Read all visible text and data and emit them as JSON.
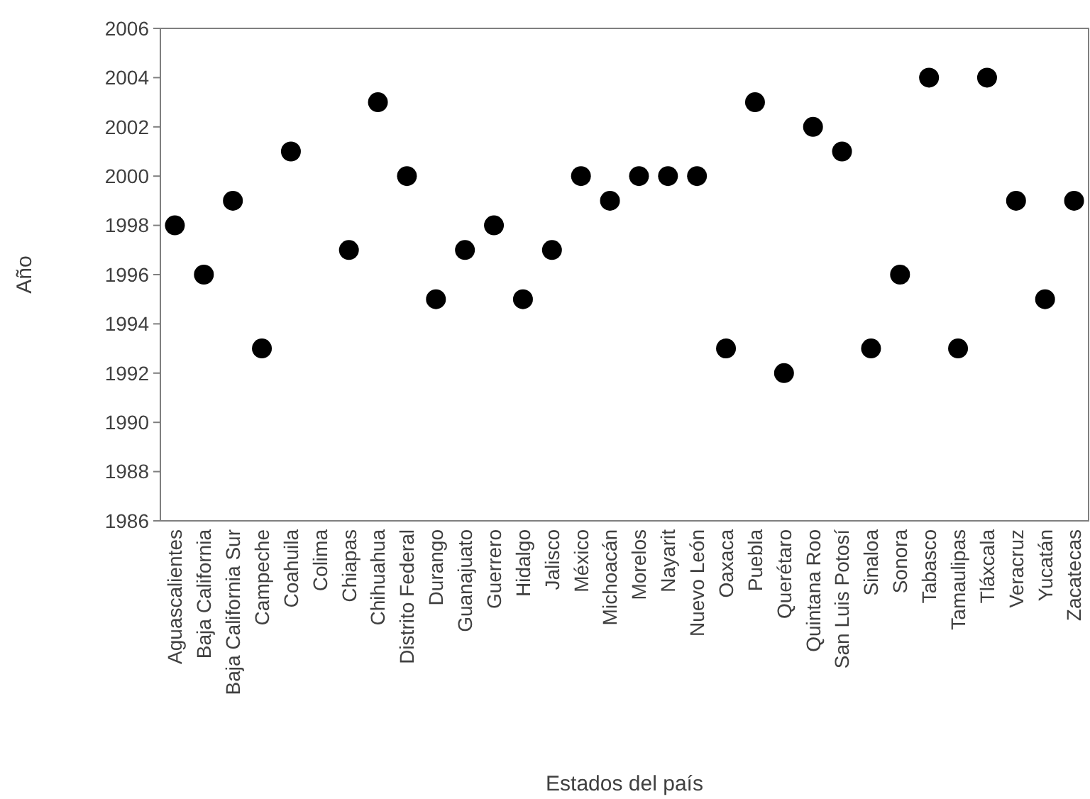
{
  "chart_data": {
    "type": "scatter",
    "xlabel": "Estados del país",
    "ylabel": "Año",
    "categories": [
      "Aguascalientes",
      "Baja California",
      "Baja California Sur",
      "Campeche",
      "Coahuila",
      "Colima",
      "Chiapas",
      "Chihuahua",
      "Distrito Federal",
      "Durango",
      "Guanajuato",
      "Guerrero",
      "Hidalgo",
      "Jalisco",
      "México",
      "Michoacán",
      "Morelos",
      "Nayarit",
      "Nuevo León",
      "Oaxaca",
      "Puebla",
      "Querétaro",
      "Quintana Roo",
      "San Luis Potosí",
      "Sinaloa",
      "Sonora",
      "Tabasco",
      "Tamaulipas",
      "Tláxcala",
      "Veracruz",
      "Yucatán",
      "Zacatecas"
    ],
    "series": [
      {
        "color": "#000000",
        "values": [
          1998,
          1996,
          1999,
          1993,
          2001,
          null,
          1997,
          2003,
          2000,
          1995,
          1997,
          1998,
          1995,
          1997,
          2000,
          1999,
          2000,
          2000,
          2000,
          1993,
          2003,
          1992,
          2002,
          2001,
          1993,
          1996,
          2004,
          1993,
          2004,
          1999,
          1995,
          1999
        ]
      }
    ],
    "ylim": [
      1986,
      2006
    ],
    "yticks": [
      1986,
      1988,
      1990,
      1992,
      1994,
      1996,
      1998,
      2000,
      2002,
      2004,
      2006
    ],
    "marker": "circle"
  }
}
